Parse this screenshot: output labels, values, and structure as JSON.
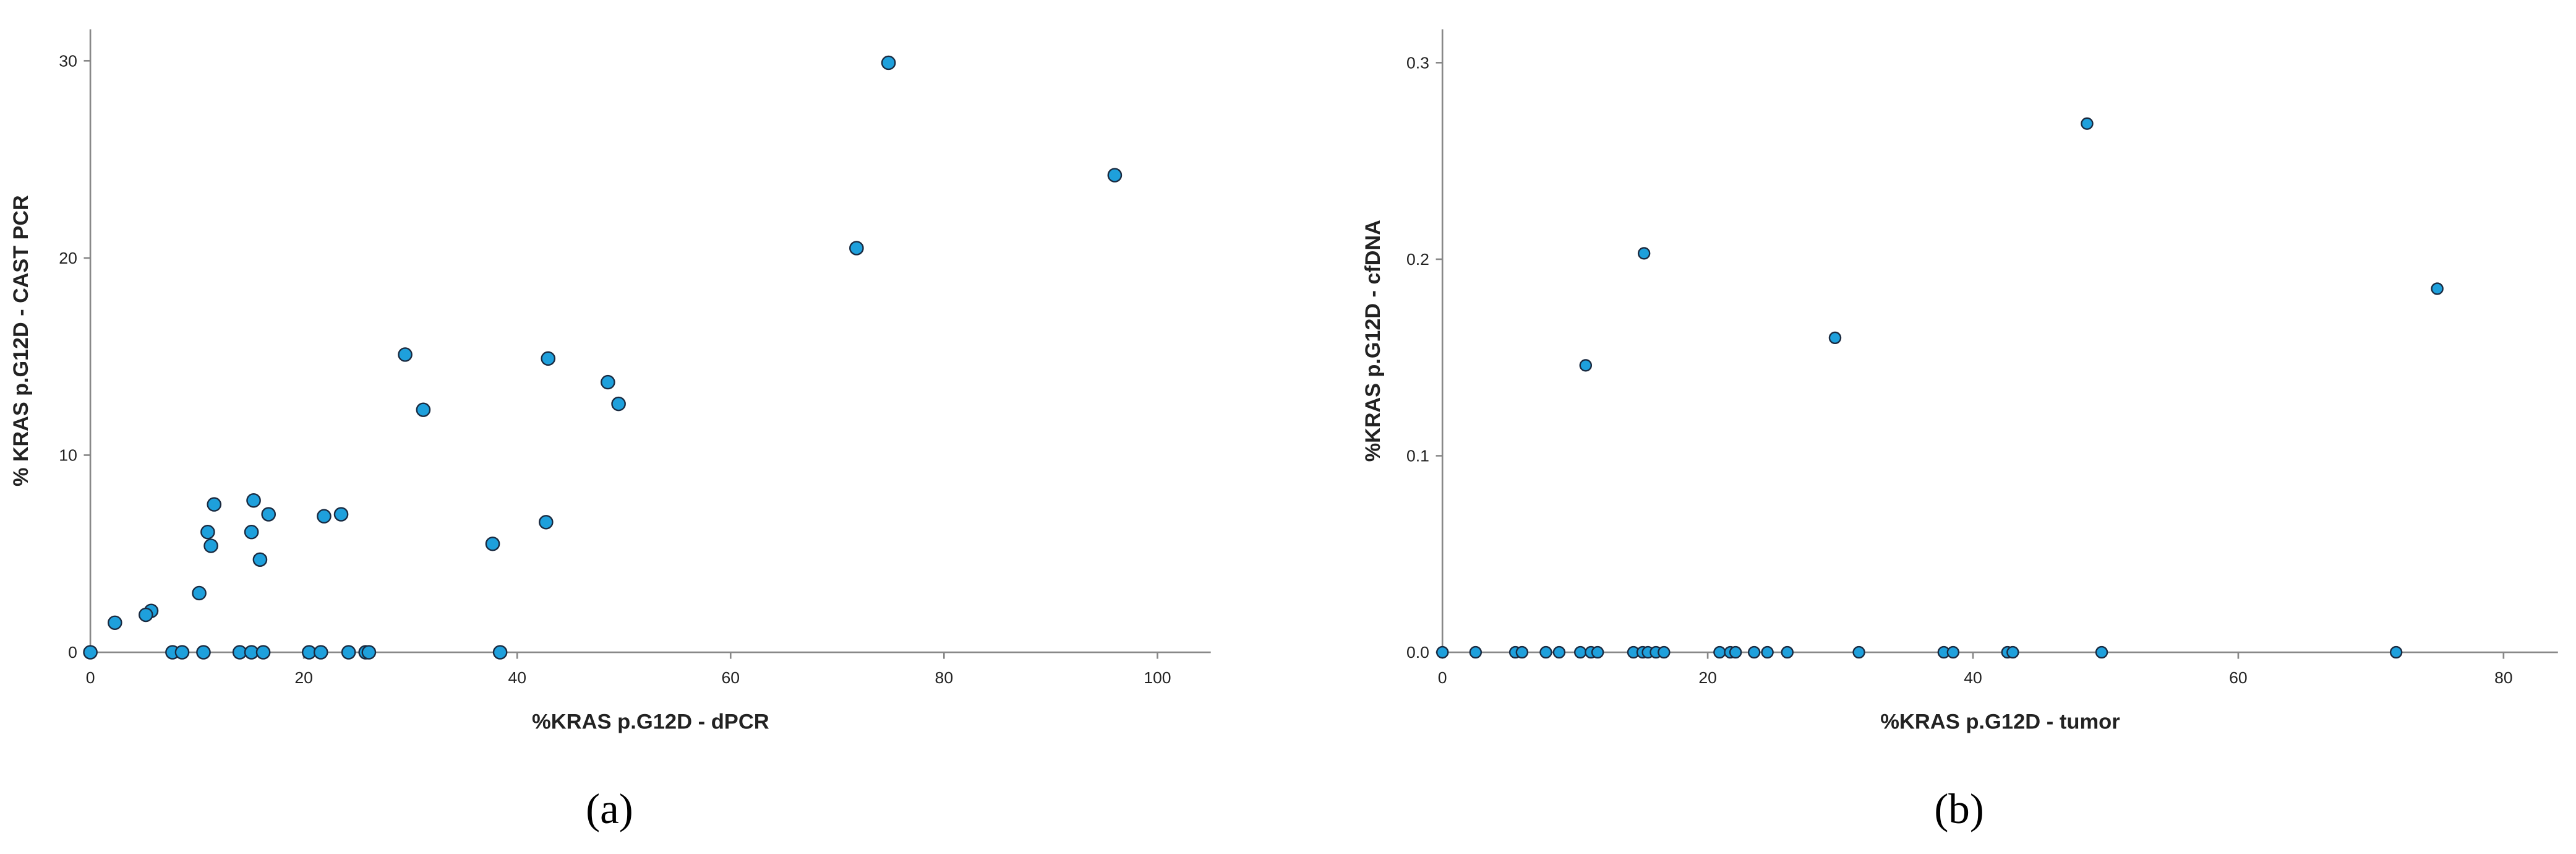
{
  "chart_data": [
    {
      "type": "scatter",
      "label": "(a)",
      "x_label": "%KRAS p.G12D - dPCR",
      "y_label": "% KRAS p.G12D - CAST PCR",
      "color": "#1ea0dc",
      "x": [
        74.8,
        96.0,
        71.8,
        29.5,
        42.9,
        48.5,
        49.5,
        31.2,
        11.6,
        15.3,
        16.7,
        21.9,
        23.5,
        11.0,
        15.1,
        11.3,
        15.9,
        37.7,
        42.7,
        10.2,
        5.7,
        5.2,
        2.3,
        0,
        7.7,
        8.6,
        10.6,
        14.0,
        15.1,
        16.2,
        20.5,
        21.6,
        24.2,
        25.8,
        26.1,
        38.4
      ],
      "values": [
        29.9,
        24.2,
        20.5,
        15.1,
        14.9,
        13.7,
        12.6,
        12.3,
        7.5,
        7.7,
        7.0,
        6.9,
        7.0,
        6.1,
        6.1,
        5.4,
        4.7,
        5.5,
        6.6,
        3.0,
        2.1,
        1.9,
        1.5,
        0,
        0,
        0,
        0,
        0,
        0,
        0,
        0,
        0,
        0,
        0,
        0,
        0
      ],
      "xlim": [
        0,
        105
      ],
      "xticks": [
        0,
        20,
        40,
        60,
        80,
        100
      ],
      "ylim": [
        0,
        31.6
      ],
      "yticks": [
        0,
        10,
        20,
        30
      ]
    },
    {
      "type": "scatter",
      "label": "(b)",
      "x_label": "%KRAS p.G12D - tumor",
      "y_label": "%KRAS p.G12D - cfDNA",
      "color": "#1ea0dc",
      "x": [
        48.6,
        15.2,
        75.0,
        29.6,
        10.8,
        0,
        2.5,
        5.5,
        6.0,
        7.8,
        8.8,
        10.4,
        11.2,
        11.7,
        14.4,
        15.1,
        15.5,
        16.1,
        16.7,
        20.9,
        21.7,
        22.1,
        23.5,
        24.5,
        26.0,
        31.4,
        37.8,
        38.5,
        42.6,
        43.0,
        49.7,
        71.9
      ],
      "values": [
        0.269,
        0.203,
        0.185,
        0.16,
        0.146,
        0,
        0,
        0,
        0,
        0,
        0,
        0,
        0,
        0,
        0,
        0,
        0,
        0,
        0,
        0,
        0,
        0,
        0,
        0,
        0,
        0,
        0,
        0,
        0,
        0,
        0,
        0
      ],
      "xlim": [
        0,
        84.1
      ],
      "xticks": [
        0,
        20,
        40,
        60,
        80
      ],
      "ylim": [
        0,
        0.317
      ],
      "yticks": [
        {
          "value": 0,
          "label": "0.0"
        },
        0.1,
        0.2,
        0.3
      ]
    }
  ]
}
